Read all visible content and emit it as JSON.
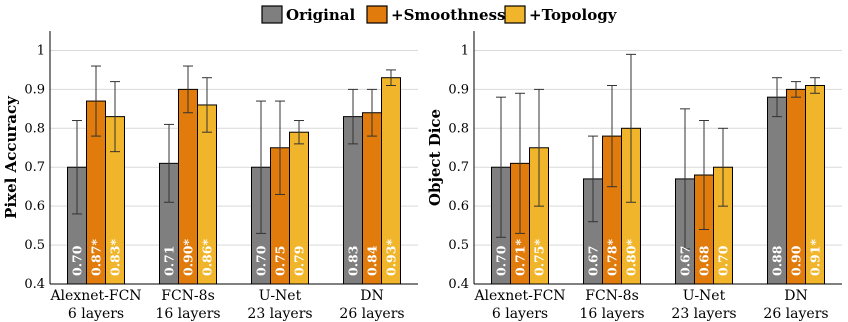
{
  "legend": {
    "items": [
      {
        "label": "Original",
        "color": "#7f7f7f"
      },
      {
        "label": "+Smoothness",
        "color": "#e07b0c"
      },
      {
        "label": "+Topology",
        "color": "#f0b52a"
      }
    ]
  },
  "chart_data": [
    {
      "type": "bar",
      "ylabel": "Pixel Accuracy",
      "ylim": [
        0.4,
        1.05
      ],
      "yticks": [
        "0.4",
        "0.5",
        "0.6",
        "0.7",
        "0.8",
        "0.9",
        "1"
      ],
      "categories": [
        {
          "name": "Alexnet-FCN",
          "sub": "6 layers"
        },
        {
          "name": "FCN-8s",
          "sub": "16 layers"
        },
        {
          "name": "U-Net",
          "sub": "23 layers"
        },
        {
          "name": "DN",
          "sub": "26 layers"
        }
      ],
      "series": [
        {
          "name": "Original",
          "color": "#7f7f7f",
          "values": [
            0.7,
            0.71,
            0.7,
            0.83
          ],
          "errors": [
            0.12,
            0.1,
            0.17,
            0.07
          ],
          "labels": [
            "0.70",
            "0.71",
            "0.70",
            "0.83"
          ]
        },
        {
          "name": "+Smoothness",
          "color": "#e07b0c",
          "values": [
            0.87,
            0.9,
            0.75,
            0.84
          ],
          "errors": [
            0.09,
            0.06,
            0.12,
            0.06
          ],
          "labels": [
            "0.87*",
            "0.90*",
            "0.75",
            "0.84"
          ]
        },
        {
          "name": "+Topology",
          "color": "#f0b52a",
          "values": [
            0.83,
            0.86,
            0.79,
            0.93
          ],
          "errors": [
            0.09,
            0.07,
            0.03,
            0.02
          ],
          "labels": [
            "0.83*",
            "0.86*",
            "0.79",
            "0.93*"
          ]
        }
      ],
      "grid": true
    },
    {
      "type": "bar",
      "ylabel": "Object Dice",
      "ylim": [
        0.4,
        1.05
      ],
      "yticks": [
        "0.4",
        "0.5",
        "0.6",
        "0.7",
        "0.8",
        "0.9",
        "1"
      ],
      "categories": [
        {
          "name": "Alexnet-FCN",
          "sub": "6 layers"
        },
        {
          "name": "FCN-8s",
          "sub": "16 layers"
        },
        {
          "name": "U-Net",
          "sub": "23 layers"
        },
        {
          "name": "DN",
          "sub": "26 layers"
        }
      ],
      "series": [
        {
          "name": "Original",
          "color": "#7f7f7f",
          "values": [
            0.7,
            0.67,
            0.67,
            0.88
          ],
          "errors": [
            0.18,
            0.11,
            0.18,
            0.05
          ],
          "labels": [
            "0.70",
            "0.67",
            "0.67",
            "0.88"
          ]
        },
        {
          "name": "+Smoothness",
          "color": "#e07b0c",
          "values": [
            0.71,
            0.78,
            0.68,
            0.9
          ],
          "errors": [
            0.18,
            0.13,
            0.14,
            0.02
          ],
          "labels": [
            "0.71*",
            "0.78*",
            "0.68",
            "0.90"
          ]
        },
        {
          "name": "+Topology",
          "color": "#f0b52a",
          "values": [
            0.75,
            0.8,
            0.7,
            0.91
          ],
          "errors": [
            0.15,
            0.19,
            0.1,
            0.02
          ],
          "labels": [
            "0.75*",
            "0.80*",
            "0.70",
            "0.91*"
          ]
        }
      ],
      "grid": true
    }
  ]
}
